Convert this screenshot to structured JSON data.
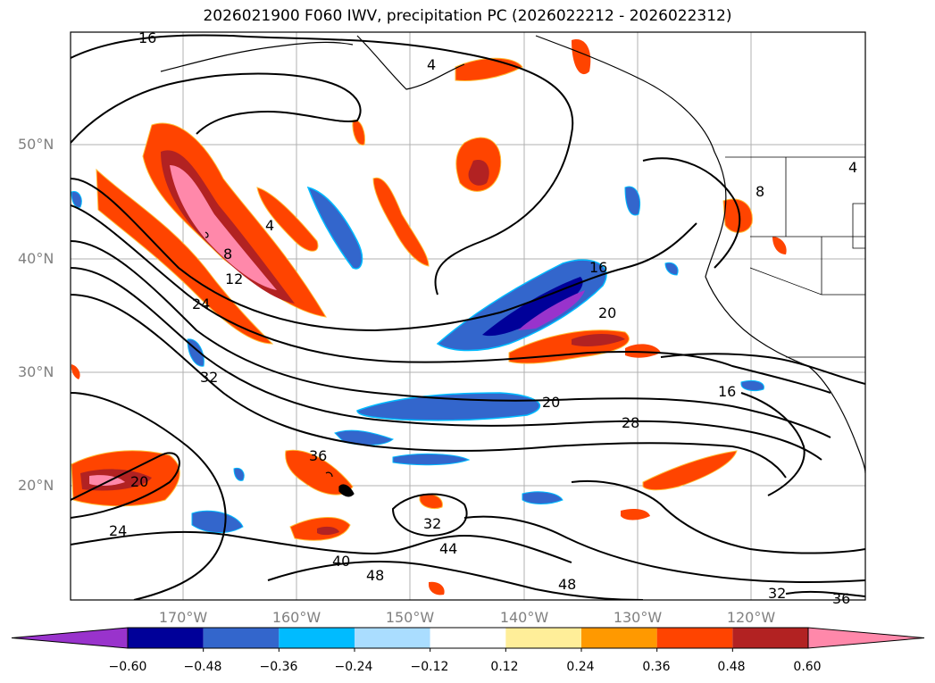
{
  "title": "2026021900 F060 IWV, precipitation PC (2026022212 - 2026022312)",
  "map": {
    "lat_labels": [
      "50°N",
      "40°N",
      "30°N",
      "20°N"
    ],
    "lon_labels": [
      "170°W",
      "160°W",
      "150°W",
      "140°W",
      "130°W",
      "120°W"
    ],
    "contour_labels": [
      "16",
      "4",
      "4",
      "8",
      "12",
      "24",
      "32",
      "36",
      "20",
      "24",
      "16",
      "20",
      "20",
      "16",
      "28",
      "32",
      "44",
      "40",
      "48",
      "48",
      "32",
      "36",
      "4",
      "8"
    ]
  },
  "colorbar": {
    "ticks": [
      "−0.60",
      "−0.48",
      "−0.36",
      "−0.24",
      "−0.12",
      "0.12",
      "0.24",
      "0.36",
      "0.48",
      "0.60"
    ],
    "colors": [
      "#9933cc",
      "#000099",
      "#3366cc",
      "#00bbff",
      "#aaddff",
      "#ffffff",
      "#ffee99",
      "#ff9900",
      "#ff4400",
      "#b22222",
      "#ff88aa"
    ]
  }
}
